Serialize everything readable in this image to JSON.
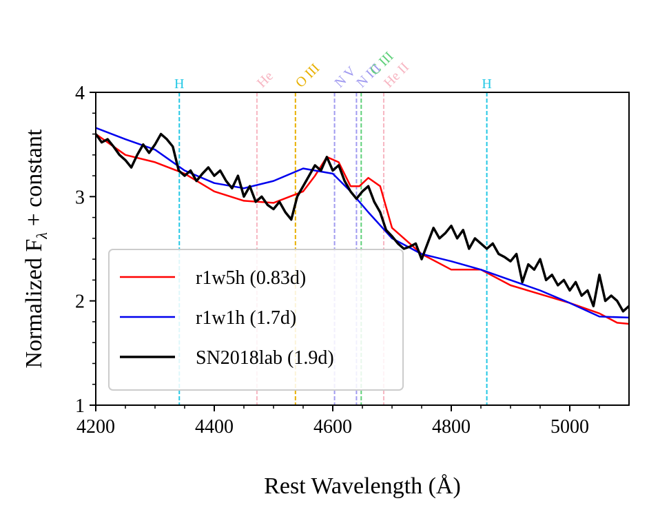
{
  "chart_data": {
    "type": "line",
    "xlabel": "Rest Wavelength (Å)",
    "ylabel": [
      "Normalized F",
      "λ",
      " + constant"
    ],
    "xlim": [
      4200,
      5100
    ],
    "ylim": [
      1,
      4
    ],
    "xticks": [
      4200,
      4400,
      4600,
      4800,
      5000
    ],
    "yticks": [
      1,
      2,
      3,
      4
    ],
    "xminorticks": [
      4250,
      4300,
      4350,
      4450,
      4500,
      4550,
      4650,
      4700,
      4750,
      4850,
      4900,
      4950,
      5050
    ],
    "yminorticks": [
      1.2,
      1.4,
      1.6,
      1.8,
      2.2,
      2.4,
      2.6,
      2.8,
      3.2,
      3.4,
      3.6,
      3.8
    ],
    "legend": "lower left",
    "lines": [
      {
        "label": "H",
        "x": 4341,
        "color": "#22c8e5"
      },
      {
        "label": "He",
        "x": 4472,
        "color": "#f7b6c2"
      },
      {
        "label": "O III",
        "x": 4537,
        "color": "#e8b000"
      },
      {
        "label": "N V",
        "x": 4603,
        "color": "#a09af0"
      },
      {
        "label": "N III",
        "x": 4640,
        "color": "#a09af0"
      },
      {
        "label": "C III",
        "x": 4648,
        "color": "#5fd07a"
      },
      {
        "label": "He II",
        "x": 4686,
        "color": "#f7b6c2"
      },
      {
        "label": "H",
        "x": 4860,
        "color": "#22c8e5"
      }
    ],
    "series": [
      {
        "name": "r1w5h (0.83d)",
        "color": "#ff0000",
        "width": 2.5,
        "x": [
          4200,
          4250,
          4300,
          4350,
          4400,
          4450,
          4500,
          4550,
          4570,
          4590,
          4610,
          4630,
          4645,
          4660,
          4680,
          4700,
          4750,
          4800,
          4850,
          4900,
          5000,
          5050,
          5080,
          5100
        ],
        "values": [
          3.6,
          3.4,
          3.33,
          3.22,
          3.05,
          2.96,
          2.94,
          3.05,
          3.2,
          3.38,
          3.33,
          3.1,
          3.1,
          3.18,
          3.1,
          2.7,
          2.45,
          2.3,
          2.3,
          2.15,
          1.98,
          1.88,
          1.79,
          1.78
        ]
      },
      {
        "name": "r1w1h (1.7d)",
        "color": "#0000ee",
        "width": 2.5,
        "x": [
          4200,
          4250,
          4300,
          4350,
          4400,
          4450,
          4500,
          4550,
          4600,
          4630,
          4660,
          4700,
          4750,
          4800,
          4850,
          4900,
          4950,
          5000,
          5050,
          5100
        ],
        "values": [
          3.66,
          3.55,
          3.45,
          3.25,
          3.13,
          3.08,
          3.15,
          3.27,
          3.22,
          3.05,
          2.85,
          2.6,
          2.45,
          2.38,
          2.3,
          2.2,
          2.1,
          1.98,
          1.85,
          1.84
        ]
      },
      {
        "name": "SN2018lab (1.9d)",
        "color": "#000000",
        "width": 3.5,
        "x": [
          4200,
          4210,
          4220,
          4230,
          4240,
          4250,
          4260,
          4270,
          4280,
          4290,
          4300,
          4310,
          4320,
          4330,
          4340,
          4350,
          4360,
          4370,
          4380,
          4390,
          4400,
          4410,
          4420,
          4430,
          4440,
          4450,
          4460,
          4470,
          4480,
          4490,
          4500,
          4510,
          4520,
          4530,
          4540,
          4550,
          4560,
          4570,
          4580,
          4590,
          4600,
          4610,
          4620,
          4630,
          4640,
          4650,
          4660,
          4670,
          4680,
          4690,
          4700,
          4710,
          4720,
          4730,
          4740,
          4750,
          4760,
          4770,
          4780,
          4790,
          4800,
          4810,
          4820,
          4830,
          4840,
          4850,
          4860,
          4870,
          4880,
          4890,
          4900,
          4910,
          4920,
          4930,
          4940,
          4950,
          4960,
          4970,
          4980,
          4990,
          5000,
          5010,
          5020,
          5030,
          5040,
          5050,
          5060,
          5070,
          5080,
          5090,
          5100
        ],
        "values": [
          3.6,
          3.52,
          3.55,
          3.48,
          3.4,
          3.35,
          3.28,
          3.4,
          3.5,
          3.42,
          3.5,
          3.6,
          3.55,
          3.48,
          3.25,
          3.2,
          3.25,
          3.15,
          3.22,
          3.28,
          3.2,
          3.25,
          3.15,
          3.08,
          3.2,
          3.0,
          3.1,
          2.95,
          3.0,
          2.92,
          2.88,
          2.95,
          2.85,
          2.78,
          3.0,
          3.1,
          3.2,
          3.3,
          3.25,
          3.38,
          3.25,
          3.3,
          3.15,
          3.05,
          2.98,
          3.05,
          3.1,
          2.95,
          2.85,
          2.68,
          2.62,
          2.55,
          2.5,
          2.52,
          2.55,
          2.4,
          2.55,
          2.7,
          2.6,
          2.65,
          2.72,
          2.6,
          2.68,
          2.5,
          2.6,
          2.55,
          2.5,
          2.55,
          2.45,
          2.42,
          2.38,
          2.45,
          2.18,
          2.35,
          2.3,
          2.4,
          2.2,
          2.25,
          2.15,
          2.2,
          2.1,
          2.18,
          2.05,
          2.1,
          1.95,
          2.25,
          2.0,
          2.05,
          2.0,
          1.9,
          1.95
        ]
      }
    ]
  }
}
